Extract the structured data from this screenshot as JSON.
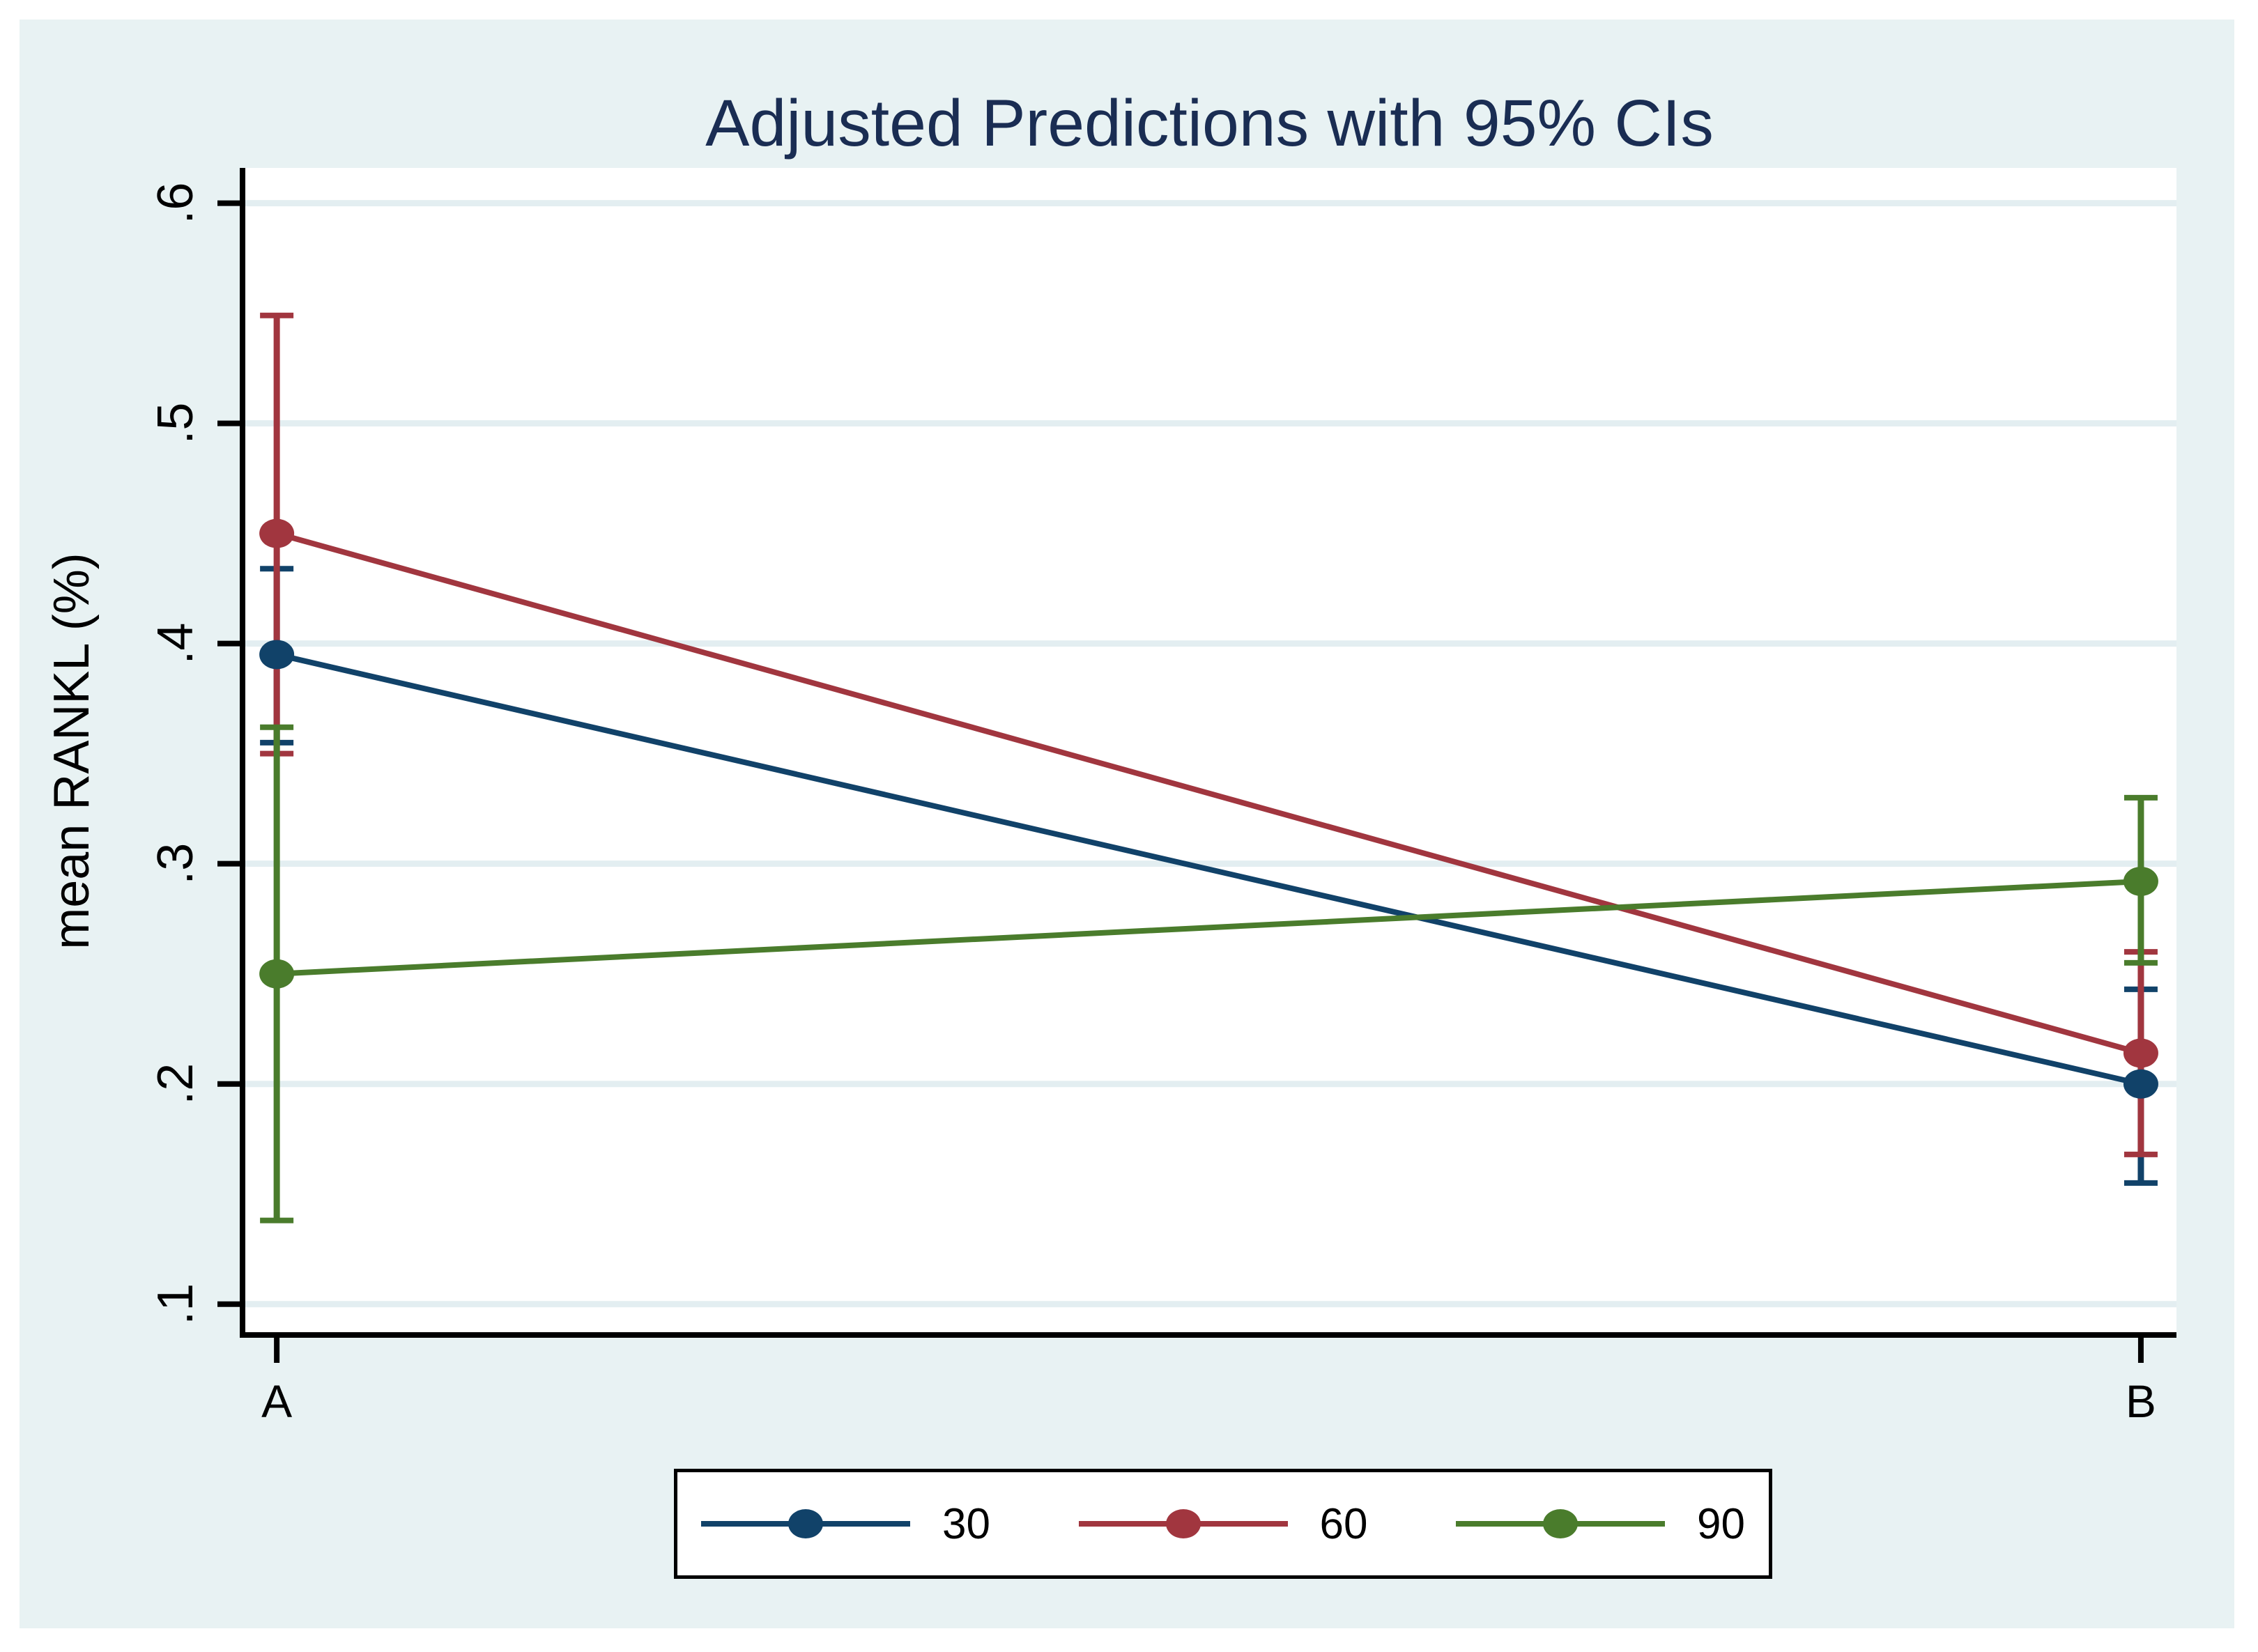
{
  "chart_data": {
    "type": "line",
    "title": "Adjusted Predictions with 95% CIs",
    "ylabel": "mean RANKL (%)",
    "xlabel": "",
    "categories": [
      "A",
      "B"
    ],
    "yticks": [
      ".1",
      ".2",
      ".3",
      ".4",
      ".5",
      ".6"
    ],
    "ytick_values": [
      0.1,
      0.2,
      0.3,
      0.4,
      0.5,
      0.6
    ],
    "ylim": [
      0.086,
      0.616
    ],
    "grid": true,
    "legend_position": "bottom-center",
    "error_bars": "95% CI",
    "series": [
      {
        "name": "30",
        "color": "#114269",
        "values": [
          0.395,
          0.2
        ],
        "ci_low": [
          0.355,
          0.155
        ],
        "ci_high": [
          0.434,
          0.243
        ]
      },
      {
        "name": "60",
        "color": "#a1363f",
        "values": [
          0.45,
          0.214
        ],
        "ci_low": [
          0.35,
          0.168
        ],
        "ci_high": [
          0.549,
          0.26
        ]
      },
      {
        "name": "90",
        "color": "#4a7c2c",
        "values": [
          0.25,
          0.292
        ],
        "ci_low": [
          0.138,
          0.255
        ],
        "ci_high": [
          0.362,
          0.33
        ]
      }
    ],
    "colors": {
      "canvas_margin": "#ffffff",
      "background": "#e8f2f3",
      "plot_background": "#ffffff",
      "gridline": "#e3eef1",
      "axis": "#000000",
      "title": "#1a2d53",
      "text": "#000000",
      "legend_border": "#000000",
      "legend_background": "#ffffff"
    }
  }
}
